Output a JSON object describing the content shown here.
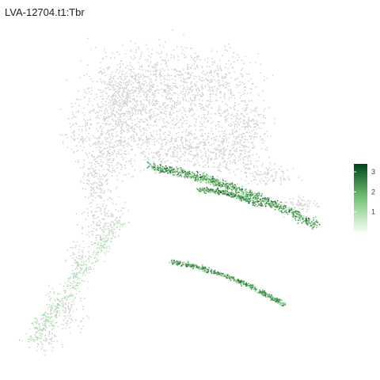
{
  "chart_data": {
    "type": "scatter",
    "title": "LVA-12704.t1:Tbr",
    "xlabel": "",
    "ylabel": "",
    "grid": false,
    "axes_shown": false,
    "background_color": "#d3d3d3",
    "color_scale": {
      "low": "#f7fcf5",
      "mid": "#74c476",
      "high": "#00441b",
      "min": 0,
      "max": 3.4,
      "ticks": [
        1,
        2,
        3
      ],
      "placement": "right"
    }
  }
}
